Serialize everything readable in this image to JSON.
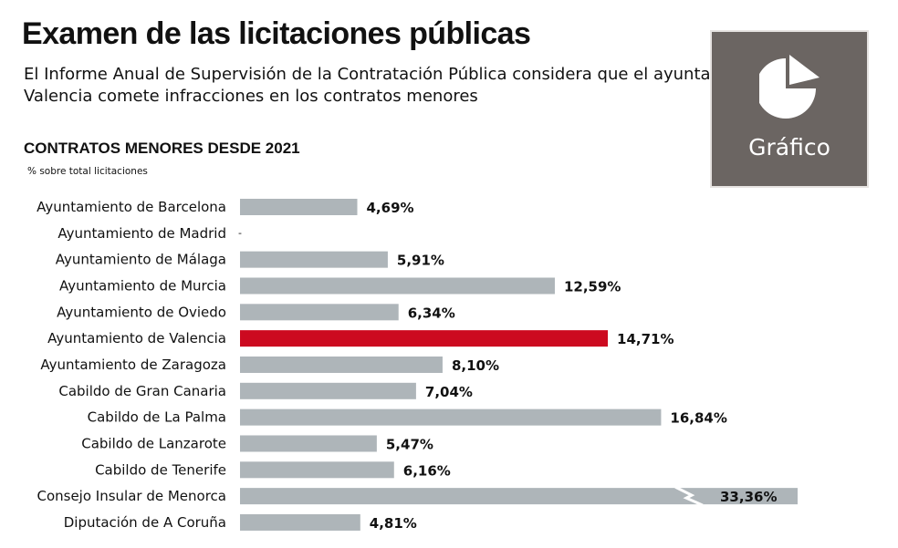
{
  "header": {
    "title": "Examen de las licitaciones públicas",
    "subtitle": "El Informe Anual de Supervisión de la Contratación Pública considera que el ayuntamiento de Valencia comete infracciones en los contratos menores"
  },
  "logo": {
    "label": "Gráfico",
    "icon": "pie-chart-icon",
    "background": "#6b6562"
  },
  "colors": {
    "bar_default": "#aeb5b9",
    "bar_highlight": "#cc0a20",
    "label_highlight": "#cc0a20"
  },
  "chart_data": {
    "type": "bar",
    "orientation": "horizontal",
    "title": "CONTRATOS MENORES DESDE 2021",
    "ylabel": "% sobre total licitaciones",
    "categories": [
      "Ayuntamiento de Barcelona",
      "Ayuntamiento de Madrid",
      "Ayuntamiento de Málaga",
      "Ayuntamiento de Murcia",
      "Ayuntamiento de Oviedo",
      "Ayuntamiento de Valencia",
      "Ayuntamiento de Zaragoza",
      "Cabildo de Gran Canaria",
      "Cabildo de La Palma",
      "Cabildo de Lanzarote",
      "Cabildo de Tenerife",
      "Consejo Insular de Menorca",
      "Diputación de A Coruña"
    ],
    "values": [
      4.69,
      null,
      5.91,
      12.59,
      6.34,
      14.71,
      8.1,
      7.04,
      16.84,
      5.47,
      6.16,
      33.36,
      4.81
    ],
    "value_labels": [
      "4,69%",
      "-",
      "5,91%",
      "12,59%",
      "6,34%",
      "14,71%",
      "8,10%",
      "7,04%",
      "16,84%",
      "5,47%",
      "6,16%",
      "33,36%",
      "4,81%"
    ],
    "highlight": "Ayuntamiento de Valencia",
    "axis_break": "Consejo Insular de Menorca",
    "grid": false,
    "legend": "none"
  }
}
